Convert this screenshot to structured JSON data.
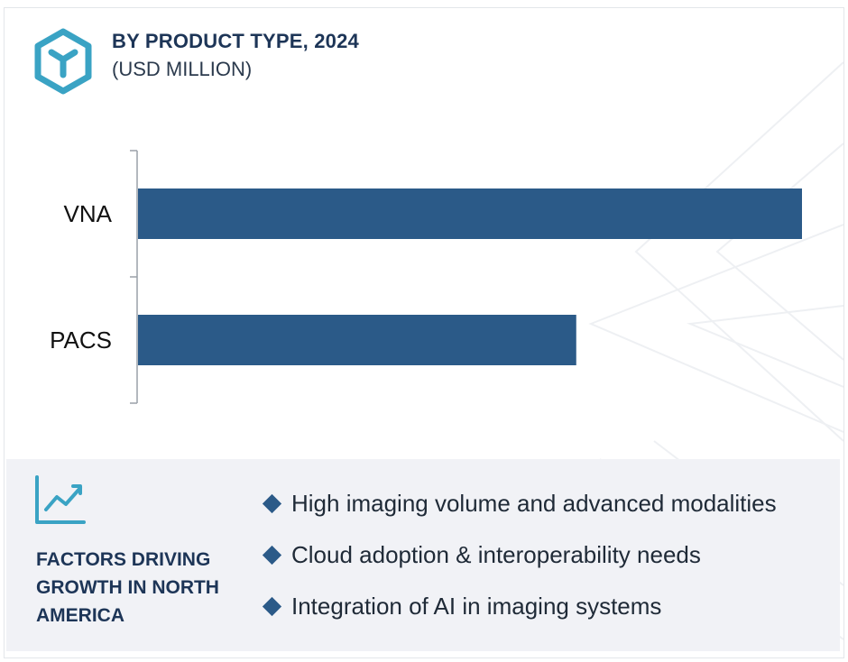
{
  "header": {
    "title": "BY PRODUCT TYPE, 2024",
    "subtitle": "(USD MILLION)"
  },
  "colors": {
    "bar": "#2b5a88",
    "title": "#1d3557",
    "logo": "#3aa3c4",
    "panel": "#f1f2f6"
  },
  "icons": {
    "logo": "cube-logo-icon",
    "trend": "line-chart-trend-icon",
    "bullet": "diamond-bullet-icon"
  },
  "chart_data": {
    "type": "bar",
    "orientation": "horizontal",
    "categories": [
      "VNA",
      "PACS"
    ],
    "values": [
      100,
      66
    ],
    "value_scale": "relative (no axis values printed)",
    "title": "BY PRODUCT TYPE, 2024",
    "subtitle": "(USD MILLION)",
    "xlabel": "",
    "ylabel": "",
    "grid": false,
    "legend": "none"
  },
  "factors": {
    "heading": "FACTORS DRIVING GROWTH IN NORTH AMERICA",
    "items": [
      "High imaging volume and advanced modalities",
      "Cloud adoption & interoperability needs",
      "Integration of AI in imaging systems"
    ]
  }
}
